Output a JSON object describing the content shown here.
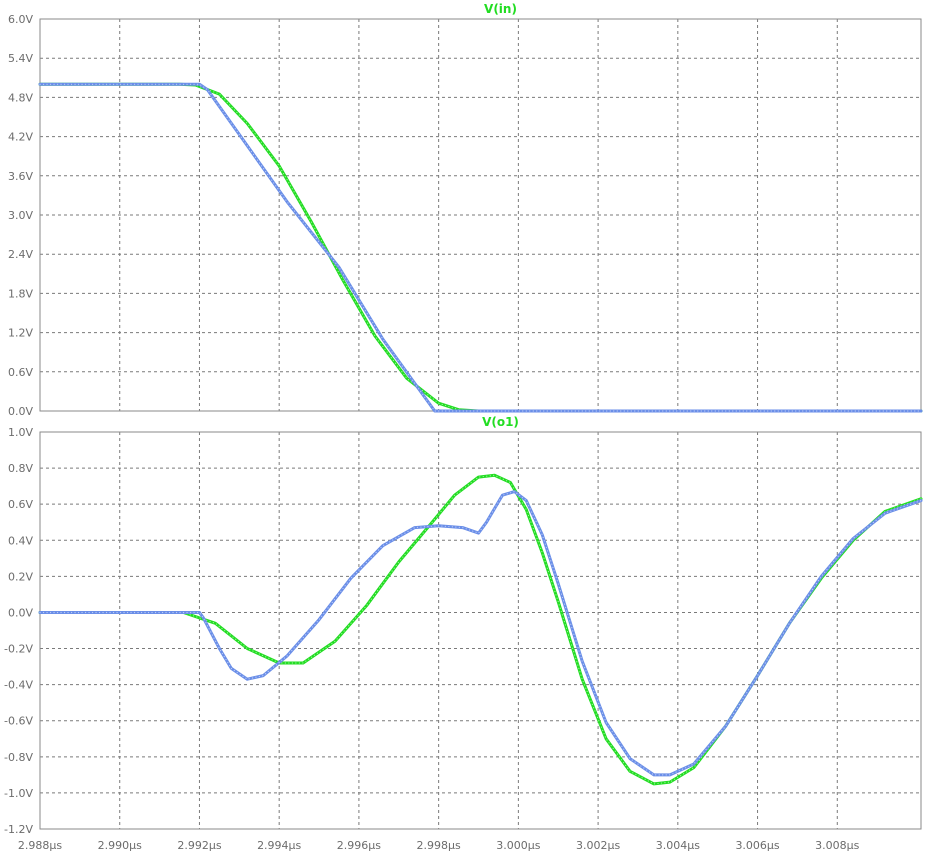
{
  "chart_data": [
    {
      "type": "line",
      "title": "V(in)",
      "title_color": "#22dd22",
      "xlim": [
        2.988,
        3.0101
      ],
      "ylim": [
        0.0,
        6.0
      ],
      "grid": true,
      "x_ticks": [
        2.988,
        2.99,
        2.992,
        2.994,
        2.996,
        2.998,
        3.0,
        3.002,
        3.004,
        3.006,
        3.008
      ],
      "x_tick_labels": [
        "2.988µs",
        "2.990µs",
        "2.992µs",
        "2.994µs",
        "2.996µs",
        "2.998µs",
        "3.000µs",
        "3.002µs",
        "3.004µs",
        "3.006µs",
        "3.008µs"
      ],
      "y_ticks": [
        0.0,
        0.6,
        1.2,
        1.8,
        2.4,
        3.0,
        3.6,
        4.2,
        4.8,
        5.4,
        6.0
      ],
      "y_tick_labels": [
        "0.0V",
        "0.6V",
        "1.2V",
        "1.8V",
        "2.4V",
        "3.0V",
        "3.6V",
        "4.2V",
        "4.8V",
        "5.4V",
        "6.0V"
      ],
      "series": [
        {
          "color": "#22dd22",
          "points": [
            [
              2.988,
              5.0
            ],
            [
              2.9915,
              5.0
            ],
            [
              2.9919,
              4.99
            ],
            [
              2.9925,
              4.85
            ],
            [
              2.9932,
              4.4
            ],
            [
              2.994,
              3.75
            ],
            [
              2.9948,
              2.9
            ],
            [
              2.9956,
              2.0
            ],
            [
              2.9964,
              1.15
            ],
            [
              2.9972,
              0.5
            ],
            [
              2.998,
              0.12
            ],
            [
              2.9985,
              0.02
            ],
            [
              2.999,
              0.0
            ],
            [
              3.0101,
              0.0
            ]
          ]
        },
        {
          "color": "#6a8ee8",
          "points": [
            [
              2.988,
              5.0
            ],
            [
              2.992,
              5.0
            ],
            [
              2.9922,
              4.92
            ],
            [
              2.9942,
              3.2
            ],
            [
              2.9955,
              2.2
            ],
            [
              2.9966,
              1.1
            ],
            [
              2.9979,
              0.0
            ],
            [
              3.0101,
              0.0
            ]
          ]
        }
      ]
    },
    {
      "type": "line",
      "title": "V(o1)",
      "title_color": "#22dd22",
      "xlim": [
        2.988,
        3.0101
      ],
      "ylim": [
        -1.2,
        1.0
      ],
      "grid": true,
      "x_ticks": [
        2.988,
        2.99,
        2.992,
        2.994,
        2.996,
        2.998,
        3.0,
        3.002,
        3.004,
        3.006,
        3.008
      ],
      "x_tick_labels": [
        "2.988µs",
        "2.990µs",
        "2.992µs",
        "2.994µs",
        "2.996µs",
        "2.998µs",
        "3.000µs",
        "3.002µs",
        "3.004µs",
        "3.006µs",
        "3.008µs"
      ],
      "y_ticks": [
        -1.2,
        -1.0,
        -0.8,
        -0.6,
        -0.4,
        -0.2,
        0.0,
        0.2,
        0.4,
        0.6,
        0.8,
        1.0
      ],
      "y_tick_labels": [
        "-1.2V",
        "-1.0V",
        "-0.8V",
        "-0.6V",
        "-0.4V",
        "-0.2V",
        "0.0V",
        "0.2V",
        "0.4V",
        "0.6V",
        "0.8V",
        "1.0V"
      ],
      "series": [
        {
          "color": "#22dd22",
          "points": [
            [
              2.988,
              0.0
            ],
            [
              2.9916,
              0.0
            ],
            [
              2.9924,
              -0.06
            ],
            [
              2.9932,
              -0.2
            ],
            [
              2.994,
              -0.28
            ],
            [
              2.9946,
              -0.28
            ],
            [
              2.9954,
              -0.16
            ],
            [
              2.9962,
              0.04
            ],
            [
              2.997,
              0.28
            ],
            [
              2.9978,
              0.49
            ],
            [
              2.9984,
              0.65
            ],
            [
              2.999,
              0.75
            ],
            [
              2.9994,
              0.76
            ],
            [
              2.9998,
              0.72
            ],
            [
              3.0002,
              0.57
            ],
            [
              3.0006,
              0.33
            ],
            [
              3.001,
              0.06
            ],
            [
              3.0016,
              -0.37
            ],
            [
              3.0022,
              -0.7
            ],
            [
              3.0028,
              -0.88
            ],
            [
              3.0034,
              -0.95
            ],
            [
              3.0038,
              -0.94
            ],
            [
              3.0044,
              -0.86
            ],
            [
              3.0052,
              -0.63
            ],
            [
              3.006,
              -0.35
            ],
            [
              3.0068,
              -0.06
            ],
            [
              3.0076,
              0.19
            ],
            [
              3.0084,
              0.4
            ],
            [
              3.0092,
              0.56
            ],
            [
              3.0101,
              0.63
            ]
          ]
        },
        {
          "color": "#6a8ee8",
          "points": [
            [
              2.988,
              0.0
            ],
            [
              2.992,
              0.0
            ],
            [
              2.9921,
              -0.03
            ],
            [
              2.9925,
              -0.2
            ],
            [
              2.9928,
              -0.31
            ],
            [
              2.9932,
              -0.37
            ],
            [
              2.9936,
              -0.35
            ],
            [
              2.9942,
              -0.24
            ],
            [
              2.995,
              -0.04
            ],
            [
              2.9958,
              0.19
            ],
            [
              2.9966,
              0.37
            ],
            [
              2.9974,
              0.47
            ],
            [
              2.998,
              0.48
            ],
            [
              2.9986,
              0.47
            ],
            [
              2.999,
              0.44
            ],
            [
              2.9992,
              0.5
            ],
            [
              2.9996,
              0.65
            ],
            [
              2.9999,
              0.67
            ],
            [
              3.0002,
              0.62
            ],
            [
              3.0006,
              0.43
            ],
            [
              3.001,
              0.16
            ],
            [
              3.0016,
              -0.27
            ],
            [
              3.0022,
              -0.61
            ],
            [
              3.0028,
              -0.81
            ],
            [
              3.0034,
              -0.9
            ],
            [
              3.0038,
              -0.9
            ],
            [
              3.0044,
              -0.84
            ],
            [
              3.0052,
              -0.63
            ],
            [
              3.006,
              -0.35
            ],
            [
              3.0068,
              -0.06
            ],
            [
              3.0076,
              0.2
            ],
            [
              3.0084,
              0.41
            ],
            [
              3.0092,
              0.55
            ],
            [
              3.0101,
              0.62
            ]
          ]
        }
      ]
    }
  ]
}
